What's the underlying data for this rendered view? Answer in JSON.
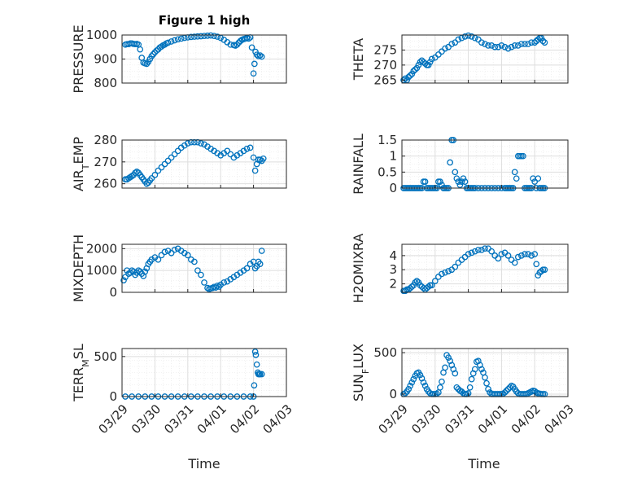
{
  "figure_title": "Figure 1 high",
  "colors": {
    "marker": "#0072BD",
    "grid": "#dedede",
    "axis": "#262626"
  },
  "x_ticks": [
    "03/29",
    "03/30",
    "03/31",
    "04/01",
    "04/02",
    "04/03"
  ],
  "x_axis_label": "Time",
  "chart_data": [
    {
      "type": "scatter",
      "ylabel": "PRESSURE",
      "ylim": [
        800,
        1000
      ],
      "yticks": [
        800,
        900,
        1000
      ],
      "grid": true,
      "x": [
        0.1,
        0.15,
        0.2,
        0.25,
        0.3,
        0.35,
        0.4,
        0.45,
        0.5,
        0.55,
        0.6,
        0.65,
        0.7,
        0.75,
        0.8,
        0.85,
        0.9,
        0.95,
        1.0,
        1.05,
        1.1,
        1.15,
        1.2,
        1.25,
        1.3,
        1.35,
        1.4,
        1.5,
        1.6,
        1.7,
        1.8,
        1.9,
        2.0,
        2.1,
        2.2,
        2.3,
        2.4,
        2.5,
        2.6,
        2.7,
        2.8,
        2.9,
        3.0,
        3.1,
        3.2,
        3.3,
        3.4,
        3.45,
        3.5,
        3.55,
        3.6,
        3.65,
        3.7,
        3.75,
        3.8,
        3.85,
        3.9,
        3.95,
        4.0,
        4.03,
        4.06,
        4.1,
        4.15,
        4.2,
        4.25
      ],
      "y": [
        960,
        962,
        962,
        965,
        965,
        963,
        962,
        963,
        960,
        940,
        905,
        885,
        882,
        880,
        888,
        900,
        912,
        920,
        928,
        935,
        940,
        948,
        952,
        957,
        960,
        965,
        968,
        973,
        978,
        982,
        985,
        988,
        990,
        992,
        993,
        994,
        995,
        996,
        997,
        998,
        996,
        993,
        988,
        980,
        970,
        960,
        958,
        956,
        960,
        968,
        975,
        980,
        983,
        985,
        988,
        985,
        990,
        948,
        840,
        880,
        930,
        918,
        912,
        915,
        910
      ]
    },
    {
      "type": "scatter",
      "ylabel": "THETA",
      "ylim": [
        264,
        280
      ],
      "yticks": [
        265,
        270,
        275
      ],
      "grid": true,
      "x": [
        0.05,
        0.1,
        0.15,
        0.2,
        0.25,
        0.3,
        0.35,
        0.4,
        0.45,
        0.5,
        0.55,
        0.6,
        0.65,
        0.7,
        0.75,
        0.8,
        0.85,
        0.9,
        1.0,
        1.1,
        1.2,
        1.3,
        1.4,
        1.5,
        1.6,
        1.7,
        1.8,
        1.9,
        2.0,
        2.1,
        2.2,
        2.3,
        2.4,
        2.5,
        2.6,
        2.7,
        2.8,
        2.9,
        3.0,
        3.1,
        3.2,
        3.3,
        3.4,
        3.5,
        3.6,
        3.7,
        3.8,
        3.9,
        4.0,
        4.05,
        4.1,
        4.15,
        4.2,
        4.25,
        4.3
      ],
      "y": [
        265,
        265.5,
        265,
        266,
        266.5,
        267,
        268,
        268.5,
        269,
        270,
        271,
        271.5,
        271,
        270.5,
        270,
        270,
        271,
        272,
        272.5,
        273.5,
        274.5,
        275.5,
        276,
        277,
        277.5,
        278.5,
        279,
        279.5,
        279.8,
        279.5,
        279,
        278.5,
        277.5,
        277,
        276.5,
        276.5,
        276,
        276,
        276.5,
        276,
        275.5,
        276,
        276.5,
        276.5,
        277,
        277,
        277,
        277.5,
        277.5,
        278,
        278.5,
        279,
        279,
        278,
        277.5
      ]
    },
    {
      "type": "scatter",
      "ylabel": "AIR_TEMP",
      "ylim": [
        258,
        280
      ],
      "yticks": [
        260,
        270,
        280
      ],
      "grid": true,
      "x": [
        0.1,
        0.15,
        0.2,
        0.25,
        0.3,
        0.35,
        0.4,
        0.45,
        0.5,
        0.55,
        0.6,
        0.65,
        0.7,
        0.75,
        0.8,
        0.85,
        0.9,
        1.0,
        1.1,
        1.2,
        1.3,
        1.4,
        1.5,
        1.6,
        1.7,
        1.8,
        1.9,
        2.0,
        2.1,
        2.2,
        2.3,
        2.4,
        2.5,
        2.6,
        2.7,
        2.8,
        2.9,
        3.0,
        3.1,
        3.2,
        3.3,
        3.4,
        3.5,
        3.6,
        3.7,
        3.8,
        3.9,
        4.0,
        4.05,
        4.1,
        4.15,
        4.2,
        4.25,
        4.3
      ],
      "y": [
        262,
        262,
        262.5,
        263,
        263.5,
        264,
        265,
        265.5,
        265,
        264,
        263,
        262,
        261,
        260,
        260.5,
        261.5,
        262.5,
        264,
        266,
        267.5,
        269,
        270.5,
        272,
        273.5,
        275,
        276.5,
        277.5,
        278.5,
        279,
        279,
        279,
        278.5,
        278,
        277,
        276,
        275,
        274,
        273,
        274,
        275,
        273.5,
        272,
        273,
        274,
        275,
        276,
        276.5,
        272,
        266,
        269,
        271,
        271,
        270.5,
        271.5
      ]
    },
    {
      "type": "scatter",
      "ylabel": "RAINFALL",
      "ylim": [
        0,
        1.5
      ],
      "yticks": [
        0,
        0.5,
        1,
        1.5
      ],
      "grid": true,
      "x": [
        0.05,
        0.1,
        0.15,
        0.2,
        0.25,
        0.3,
        0.35,
        0.4,
        0.45,
        0.5,
        0.55,
        0.6,
        0.65,
        0.7,
        0.75,
        0.8,
        0.85,
        0.9,
        0.95,
        1.0,
        1.05,
        1.1,
        1.15,
        1.2,
        1.25,
        1.3,
        1.35,
        1.4,
        1.45,
        1.5,
        1.55,
        1.6,
        1.65,
        1.7,
        1.75,
        1.8,
        1.85,
        1.9,
        1.95,
        2.0,
        2.05,
        2.1,
        2.15,
        2.2,
        2.3,
        2.4,
        2.5,
        2.6,
        2.7,
        2.8,
        2.9,
        3.0,
        3.1,
        3.15,
        3.2,
        3.25,
        3.3,
        3.35,
        3.4,
        3.45,
        3.5,
        3.55,
        3.6,
        3.65,
        3.7,
        3.75,
        3.8,
        3.85,
        3.9,
        3.95,
        4.0,
        4.05,
        4.1,
        4.15,
        4.2,
        4.25,
        4.3
      ],
      "y": [
        0,
        0,
        0,
        0,
        0,
        0,
        0,
        0,
        0,
        0,
        0,
        0,
        0.2,
        0.2,
        0,
        0,
        0,
        0,
        0,
        0,
        0,
        0.2,
        0.2,
        0.1,
        0,
        0,
        0,
        0,
        0.8,
        1.5,
        1.5,
        0.5,
        0.3,
        0.2,
        0.1,
        0.2,
        0.3,
        0.2,
        0,
        0,
        0,
        0,
        0,
        0,
        0,
        0,
        0,
        0,
        0,
        0,
        0,
        0,
        0,
        0,
        0,
        0,
        0,
        0,
        0.5,
        0.3,
        1.0,
        1.0,
        1.0,
        1.0,
        0,
        0,
        0,
        0,
        0,
        0.3,
        0.2,
        0,
        0.3,
        0,
        0,
        0,
        0
      ]
    },
    {
      "type": "scatter",
      "ylabel": "MIXDEPTH",
      "ylim": [
        0,
        2200
      ],
      "yticks": [
        0,
        1000,
        2000
      ],
      "grid": true,
      "x": [
        0.05,
        0.1,
        0.15,
        0.2,
        0.25,
        0.3,
        0.35,
        0.4,
        0.45,
        0.5,
        0.55,
        0.6,
        0.65,
        0.7,
        0.75,
        0.8,
        0.85,
        0.9,
        1.0,
        1.1,
        1.2,
        1.3,
        1.4,
        1.5,
        1.6,
        1.7,
        1.8,
        1.9,
        2.0,
        2.1,
        2.2,
        2.3,
        2.4,
        2.5,
        2.6,
        2.65,
        2.7,
        2.75,
        2.8,
        2.85,
        2.9,
        2.95,
        3.0,
        3.1,
        3.2,
        3.3,
        3.4,
        3.5,
        3.6,
        3.7,
        3.8,
        3.9,
        4.0,
        4.05,
        4.1,
        4.15,
        4.2,
        4.25
      ],
      "y": [
        550,
        700,
        1000,
        850,
        900,
        1000,
        950,
        800,
        900,
        1000,
        950,
        850,
        750,
        950,
        1100,
        1300,
        1400,
        1500,
        1600,
        1500,
        1700,
        1850,
        1900,
        1800,
        1950,
        2000,
        1900,
        1800,
        1700,
        1500,
        1400,
        1000,
        800,
        450,
        200,
        150,
        180,
        200,
        250,
        220,
        300,
        260,
        350,
        450,
        500,
        600,
        700,
        800,
        900,
        1000,
        1100,
        1300,
        1400,
        1100,
        1200,
        1400,
        1300,
        1900
      ]
    },
    {
      "type": "scatter",
      "ylabel": "H2OMIXRA",
      "ylim": [
        1.4,
        4.8
      ],
      "yticks": [
        2,
        3,
        4
      ],
      "grid": true,
      "x": [
        0.05,
        0.1,
        0.15,
        0.2,
        0.25,
        0.3,
        0.35,
        0.4,
        0.45,
        0.5,
        0.55,
        0.6,
        0.65,
        0.7,
        0.75,
        0.8,
        0.85,
        0.9,
        1.0,
        1.1,
        1.2,
        1.3,
        1.4,
        1.5,
        1.6,
        1.7,
        1.8,
        1.9,
        2.0,
        2.1,
        2.2,
        2.3,
        2.4,
        2.5,
        2.6,
        2.7,
        2.8,
        2.9,
        3.0,
        3.1,
        3.2,
        3.3,
        3.4,
        3.5,
        3.6,
        3.7,
        3.8,
        3.9,
        4.0,
        4.05,
        4.1,
        4.15,
        4.2,
        4.25,
        4.3
      ],
      "y": [
        1.5,
        1.5,
        1.6,
        1.6,
        1.7,
        1.8,
        1.9,
        2.1,
        2.2,
        2.1,
        1.9,
        1.8,
        1.7,
        1.6,
        1.7,
        1.8,
        1.9,
        1.9,
        2.2,
        2.5,
        2.7,
        2.8,
        2.9,
        3.0,
        3.2,
        3.5,
        3.7,
        3.9,
        4.1,
        4.2,
        4.3,
        4.4,
        4.4,
        4.5,
        4.5,
        4.3,
        4.0,
        3.8,
        4.1,
        4.2,
        4.0,
        3.7,
        3.5,
        3.9,
        4.0,
        4.1,
        4.1,
        4.0,
        4.1,
        3.4,
        2.6,
        2.8,
        2.9,
        3.0,
        3.0
      ]
    },
    {
      "type": "scatter",
      "ylabel": "TERR_MSL",
      "ylim": [
        0,
        600
      ],
      "yticks": [
        0,
        500
      ],
      "grid": true,
      "x": [
        0.1,
        0.3,
        0.5,
        0.7,
        0.9,
        1.1,
        1.3,
        1.5,
        1.7,
        1.9,
        2.1,
        2.3,
        2.5,
        2.7,
        2.9,
        3.1,
        3.3,
        3.5,
        3.7,
        3.9,
        4.0,
        4.02,
        4.05,
        4.07,
        4.1,
        4.13,
        4.15,
        4.18,
        4.2,
        4.25
      ],
      "y": [
        0,
        0,
        0,
        0,
        0,
        0,
        0,
        0,
        0,
        0,
        0,
        0,
        0,
        0,
        0,
        0,
        0,
        0,
        0,
        0,
        0,
        140,
        560,
        520,
        400,
        300,
        280,
        280,
        280,
        280
      ]
    },
    {
      "type": "scatter",
      "ylabel": "SUN_FLUX",
      "ylim": [
        -30,
        550
      ],
      "yticks": [
        0,
        500
      ],
      "grid": true,
      "x": [
        0.05,
        0.1,
        0.15,
        0.2,
        0.25,
        0.3,
        0.35,
        0.4,
        0.45,
        0.5,
        0.55,
        0.6,
        0.65,
        0.7,
        0.75,
        0.8,
        0.85,
        0.9,
        0.95,
        1.0,
        1.05,
        1.1,
        1.15,
        1.2,
        1.25,
        1.3,
        1.35,
        1.4,
        1.45,
        1.5,
        1.55,
        1.6,
        1.65,
        1.7,
        1.75,
        1.8,
        1.85,
        1.9,
        1.95,
        2.0,
        2.05,
        2.1,
        2.15,
        2.2,
        2.25,
        2.3,
        2.35,
        2.4,
        2.45,
        2.5,
        2.55,
        2.6,
        2.65,
        2.7,
        2.75,
        2.8,
        2.85,
        2.9,
        2.95,
        3.0,
        3.05,
        3.1,
        3.15,
        3.2,
        3.25,
        3.3,
        3.35,
        3.4,
        3.45,
        3.5,
        3.55,
        3.6,
        3.65,
        3.7,
        3.75,
        3.8,
        3.85,
        3.9,
        3.95,
        4.0,
        4.05,
        4.1,
        4.15,
        4.2,
        4.25,
        4.3
      ],
      "y": [
        0,
        10,
        30,
        60,
        100,
        140,
        180,
        220,
        250,
        260,
        230,
        190,
        140,
        100,
        60,
        30,
        10,
        0,
        0,
        0,
        5,
        20,
        80,
        150,
        260,
        320,
        470,
        440,
        400,
        350,
        300,
        250,
        80,
        60,
        40,
        30,
        10,
        0,
        0,
        10,
        80,
        180,
        250,
        300,
        390,
        400,
        350,
        300,
        260,
        200,
        130,
        60,
        20,
        0,
        0,
        0,
        0,
        0,
        0,
        0,
        5,
        20,
        40,
        60,
        80,
        100,
        90,
        60,
        30,
        10,
        0,
        0,
        0,
        0,
        0,
        10,
        20,
        30,
        40,
        35,
        20,
        10,
        5,
        0,
        0,
        0
      ]
    }
  ]
}
